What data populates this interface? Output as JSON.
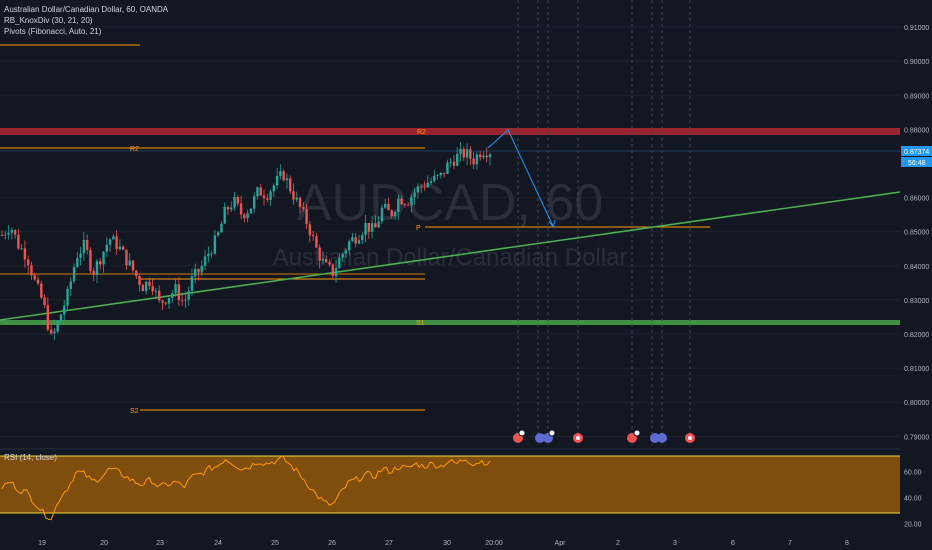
{
  "legend": {
    "title": "Australian Dollar/Canadian Dollar, 60, OANDA",
    "indicator1": "RB_KnoxDiv (30, 21, 20)",
    "indicator2": "Pivots (Fibonacci, Auto, 21)"
  },
  "watermark": {
    "symbol": "AUDCAD, 60",
    "name": "Australian Dollar/Canadian Dollar"
  },
  "price_axis": {
    "ticks": [
      "0.91000",
      "0.90000",
      "0.89000",
      "0.88000",
      "0.86000",
      "0.85000",
      "0.84000",
      "0.83000",
      "0.82000",
      "0.81000",
      "0.80000",
      "0.79000"
    ],
    "last_price": "0.87374",
    "countdown": "56:48"
  },
  "pivots": {
    "r2": "R2",
    "p": "P",
    "s1": "S1",
    "s2": "S2"
  },
  "rsi": {
    "label": "RSI (14, close)",
    "ticks": [
      "60.00",
      "40.00",
      "20.00"
    ]
  },
  "time_axis": {
    "ticks": [
      "19",
      "20",
      "23",
      "24",
      "25",
      "26",
      "27",
      "30",
      "20:00",
      "Apr",
      "2",
      "3",
      "6",
      "7",
      "8"
    ]
  },
  "colors": {
    "background": "#131722",
    "up": "#26a69a",
    "down": "#ef5350",
    "trendline": "#4caf50",
    "resistance": "#b22833",
    "support": "#4caf50",
    "pivot": "#ff9800",
    "rsi_fill": "#7f4e0c"
  },
  "chart_data": {
    "type": "candlestick",
    "symbol": "AUDCAD",
    "interval": "60",
    "ylim": [
      0.786,
      0.915
    ],
    "last_price": 0.87374,
    "pivot_levels": {
      "R2": 0.8755,
      "P": 0.8515,
      "S1": 0.8238,
      "S2": 0.7985
    },
    "resistance_zone": [
      0.8785,
      0.88
    ],
    "support_zone": [
      0.8232,
      0.8245
    ],
    "trendline": {
      "from": [
        "19",
        0.8245
      ],
      "to": [
        "8",
        0.862
      ]
    },
    "projection": [
      [
        "30",
        0.8745
      ],
      [
        "20:00",
        0.8795
      ],
      [
        "Apr",
        0.852
      ]
    ],
    "close_path": [
      0.849,
      0.852,
      0.846,
      0.843,
      0.835,
      0.829,
      0.818,
      0.825,
      0.832,
      0.843,
      0.846,
      0.838,
      0.843,
      0.848,
      0.846,
      0.842,
      0.838,
      0.834,
      0.836,
      0.829,
      0.831,
      0.833,
      0.829,
      0.836,
      0.839,
      0.844,
      0.848,
      0.856,
      0.859,
      0.855,
      0.857,
      0.862,
      0.861,
      0.864,
      0.867,
      0.862,
      0.857,
      0.852,
      0.845,
      0.84,
      0.838,
      0.843,
      0.847,
      0.849,
      0.852,
      0.85,
      0.857,
      0.855,
      0.86,
      0.859,
      0.862,
      0.864,
      0.865,
      0.866,
      0.87,
      0.872,
      0.873,
      0.871,
      0.874,
      0.8737
    ],
    "rsi_values": [
      48,
      52,
      46,
      44,
      36,
      28,
      24,
      40,
      48,
      60,
      58,
      52,
      56,
      62,
      60,
      56,
      52,
      50,
      54,
      48,
      50,
      52,
      48,
      56,
      58,
      62,
      64,
      70,
      66,
      62,
      64,
      68,
      66,
      68,
      70,
      64,
      58,
      50,
      42,
      36,
      34,
      44,
      52,
      54,
      58,
      56,
      62,
      60,
      64,
      62,
      66,
      64,
      66,
      64,
      68,
      66,
      70,
      66,
      68,
      66
    ],
    "rsi_ylim": [
      15,
      75
    ],
    "event_markers": [
      "20:00",
      "Apr",
      "2",
      "3"
    ]
  }
}
